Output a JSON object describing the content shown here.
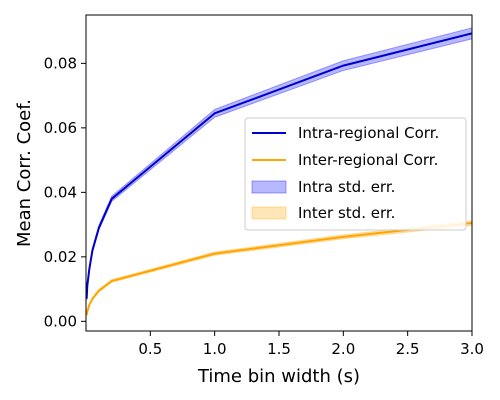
{
  "chart_data": {
    "type": "line",
    "title": "",
    "xlabel": "Time bin width (s)",
    "ylabel": "Mean Corr. Coef.",
    "xlim": [
      0.0,
      3.0
    ],
    "ylim": [
      -0.003,
      0.095
    ],
    "xticks": [
      0.5,
      1.0,
      1.5,
      2.0,
      2.5,
      3.0
    ],
    "xtick_labels": [
      "0.5",
      "1.0",
      "1.5",
      "2.0",
      "2.5",
      "3.0"
    ],
    "yticks": [
      0.0,
      0.02,
      0.04,
      0.06,
      0.08
    ],
    "ytick_labels": [
      "0.00",
      "0.02",
      "0.04",
      "0.06",
      "0.08"
    ],
    "grid": false,
    "legend_position": "center-right",
    "series": [
      {
        "name": "Intra-regional Corr.",
        "color": "#0000cc",
        "x": [
          0.005,
          0.01,
          0.025,
          0.05,
          0.1,
          0.2,
          1.0,
          2.0,
          3.0
        ],
        "y": [
          0.007,
          0.011,
          0.016,
          0.022,
          0.029,
          0.038,
          0.0645,
          0.0793,
          0.0893
        ],
        "err": [
          0.0005,
          0.0005,
          0.0006,
          0.0006,
          0.0007,
          0.0008,
          0.0012,
          0.0015,
          0.0017
        ]
      },
      {
        "name": "Inter-regional Corr.",
        "color": "#ffa500",
        "x": [
          0.005,
          0.01,
          0.025,
          0.05,
          0.1,
          0.2,
          1.0,
          2.0,
          3.0
        ],
        "y": [
          0.002,
          0.003,
          0.005,
          0.007,
          0.0095,
          0.0125,
          0.021,
          0.0262,
          0.0305
        ],
        "err": [
          0.0003,
          0.0003,
          0.0003,
          0.0004,
          0.0004,
          0.0004,
          0.0005,
          0.0006,
          0.0007
        ]
      }
    ],
    "bands": [
      {
        "name": "Intra std. err.",
        "color": "#0000ff",
        "opacity": 0.28
      },
      {
        "name": "Inter std. err.",
        "color": "#ffa500",
        "opacity": 0.28
      }
    ]
  }
}
